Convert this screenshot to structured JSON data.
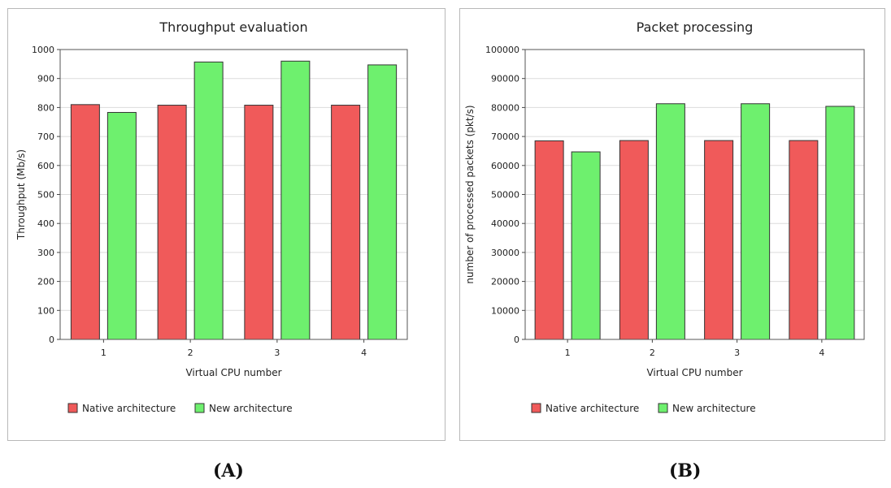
{
  "chart_data": [
    {
      "type": "bar",
      "title": "Throughput evaluation",
      "xlabel": "Virtual CPU number",
      "ylabel": "Throughput (Mb/s)",
      "categories": [
        "1",
        "2",
        "3",
        "4"
      ],
      "ylim": [
        0,
        1000
      ],
      "yticks": [
        "0",
        "100",
        "200",
        "300",
        "400",
        "500",
        "600",
        "700",
        "800",
        "900",
        "1000"
      ],
      "grid": true,
      "legend_position": "bottom",
      "series": [
        {
          "name": "Native architecture",
          "color": "#f05a5a",
          "values": [
            810,
            808,
            808,
            808
          ]
        },
        {
          "name": "New architecture",
          "color": "#6ef06e",
          "values": [
            783,
            957,
            960,
            947
          ]
        }
      ]
    },
    {
      "type": "bar",
      "title": "Packet processing",
      "xlabel": "Virtual CPU number",
      "ylabel": "number of processed packets (pkt/s)",
      "categories": [
        "1",
        "2",
        "3",
        "4"
      ],
      "ylim": [
        0,
        100000
      ],
      "yticks": [
        "0",
        "10000",
        "20000",
        "30000",
        "40000",
        "50000",
        "60000",
        "70000",
        "80000",
        "90000",
        "100000"
      ],
      "grid": true,
      "legend_position": "bottom",
      "series": [
        {
          "name": "Native architecture",
          "color": "#f05a5a",
          "values": [
            68500,
            68600,
            68600,
            68600
          ]
        },
        {
          "name": "New architecture",
          "color": "#6ef06e",
          "values": [
            64700,
            81300,
            81300,
            80400
          ]
        }
      ]
    }
  ],
  "panel_labels": [
    "(A)",
    "(B)"
  ]
}
